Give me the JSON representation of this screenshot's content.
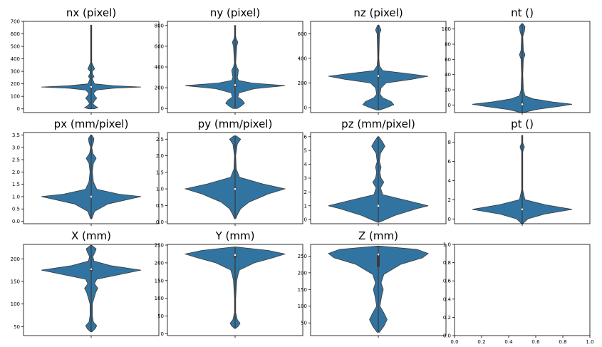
{
  "chart_data": [
    {
      "type": "violin",
      "title": "nx (pixel)",
      "ylim": [
        -30,
        700
      ],
      "yticks": [
        0,
        100,
        200,
        300,
        400,
        500,
        600,
        700
      ],
      "min": 0,
      "max": 670,
      "q1": 165,
      "median": 176,
      "q3": 182,
      "density": [
        [
          0,
          0.05
        ],
        [
          10,
          0.12
        ],
        [
          20,
          0.08
        ],
        [
          40,
          0.03
        ],
        [
          65,
          0.06
        ],
        [
          85,
          0.1
        ],
        [
          100,
          0.07
        ],
        [
          125,
          0.04
        ],
        [
          150,
          0.1
        ],
        [
          165,
          0.4
        ],
        [
          175,
          0.9
        ],
        [
          185,
          0.4
        ],
        [
          200,
          0.06
        ],
        [
          240,
          0.02
        ],
        [
          260,
          0.05
        ],
        [
          280,
          0.02
        ],
        [
          300,
          0.02
        ],
        [
          320,
          0.06
        ],
        [
          340,
          0.04
        ],
        [
          370,
          0.01
        ],
        [
          420,
          0.01
        ],
        [
          670,
          0.01
        ]
      ],
      "color": "#3274a1"
    },
    {
      "type": "violin",
      "title": "ny (pixel)",
      "ylim": [
        -40,
        840
      ],
      "yticks": [
        0,
        200,
        400,
        600,
        800
      ],
      "min": 0,
      "max": 800,
      "q1": 208,
      "median": 225,
      "q3": 232,
      "density": [
        [
          0,
          0.04
        ],
        [
          20,
          0.1
        ],
        [
          50,
          0.17
        ],
        [
          80,
          0.13
        ],
        [
          110,
          0.05
        ],
        [
          150,
          0.07
        ],
        [
          190,
          0.35
        ],
        [
          220,
          0.9
        ],
        [
          245,
          0.3
        ],
        [
          270,
          0.06
        ],
        [
          300,
          0.04
        ],
        [
          330,
          0.05
        ],
        [
          370,
          0.06
        ],
        [
          400,
          0.03
        ],
        [
          440,
          0.01
        ],
        [
          600,
          0.03
        ],
        [
          640,
          0.05
        ],
        [
          670,
          0.02
        ],
        [
          700,
          0.01
        ],
        [
          800,
          0.01
        ]
      ],
      "color": "#3274a1"
    },
    {
      "type": "violin",
      "title": "nz (pixel)",
      "ylim": [
        -40,
        700
      ],
      "yticks": [
        0,
        200,
        400,
        600
      ],
      "min": -20,
      "max": 670,
      "q1": 245,
      "median": 256,
      "q3": 262,
      "density": [
        [
          -20,
          0.02
        ],
        [
          0,
          0.15
        ],
        [
          25,
          0.28
        ],
        [
          50,
          0.23
        ],
        [
          80,
          0.08
        ],
        [
          110,
          0.03
        ],
        [
          160,
          0.05
        ],
        [
          200,
          0.14
        ],
        [
          230,
          0.6
        ],
        [
          255,
          0.9
        ],
        [
          275,
          0.55
        ],
        [
          300,
          0.08
        ],
        [
          340,
          0.02
        ],
        [
          400,
          0.01
        ],
        [
          600,
          0.02
        ],
        [
          630,
          0.05
        ],
        [
          660,
          0.02
        ],
        [
          670,
          0.01
        ]
      ],
      "color": "#3274a1"
    },
    {
      "type": "violin",
      "title": "nt ()",
      "ylim": [
        -10,
        110
      ],
      "yticks": [
        0,
        20,
        40,
        60,
        80,
        100
      ],
      "min": -10,
      "max": 107,
      "q1": 0,
      "median": 1,
      "q3": 3,
      "density": [
        [
          -10,
          0.02
        ],
        [
          -6,
          0.25
        ],
        [
          -2,
          0.65
        ],
        [
          1,
          0.9
        ],
        [
          4,
          0.55
        ],
        [
          8,
          0.2
        ],
        [
          12,
          0.05
        ],
        [
          20,
          0.02
        ],
        [
          40,
          0.01
        ],
        [
          60,
          0.02
        ],
        [
          66,
          0.05
        ],
        [
          72,
          0.02
        ],
        [
          90,
          0.01
        ],
        [
          97,
          0.04
        ],
        [
          103,
          0.05
        ],
        [
          107,
          0.01
        ]
      ],
      "color": "#3274a1"
    },
    {
      "type": "violin",
      "title": "px (mm/pixel)",
      "ylim": [
        -0.1,
        3.6
      ],
      "yticks": [
        0.0,
        0.5,
        1.0,
        1.5,
        2.0,
        2.5,
        3.0,
        3.5
      ],
      "min": 0.1,
      "max": 3.5,
      "q1": 0.98,
      "median": 1.0,
      "q3": 1.03,
      "density": [
        [
          0.1,
          0.01
        ],
        [
          0.4,
          0.06
        ],
        [
          0.7,
          0.3
        ],
        [
          0.9,
          0.7
        ],
        [
          1.0,
          0.9
        ],
        [
          1.1,
          0.5
        ],
        [
          1.3,
          0.1
        ],
        [
          1.6,
          0.04
        ],
        [
          2.0,
          0.02
        ],
        [
          2.35,
          0.04
        ],
        [
          2.55,
          0.09
        ],
        [
          2.75,
          0.03
        ],
        [
          3.0,
          0.01
        ],
        [
          3.2,
          0.04
        ],
        [
          3.35,
          0.05
        ],
        [
          3.5,
          0.01
        ]
      ],
      "color": "#3274a1"
    },
    {
      "type": "violin",
      "title": "py (mm/pixel)",
      "ylim": [
        -0.05,
        2.7
      ],
      "yticks": [
        0.0,
        0.5,
        1.0,
        1.5,
        2.0,
        2.5
      ],
      "min": 0.1,
      "max": 2.6,
      "q1": 0.97,
      "median": 1.0,
      "q3": 1.03,
      "density": [
        [
          0.1,
          0.01
        ],
        [
          0.25,
          0.05
        ],
        [
          0.4,
          0.1
        ],
        [
          0.6,
          0.25
        ],
        [
          0.85,
          0.6
        ],
        [
          1.0,
          0.9
        ],
        [
          1.15,
          0.5
        ],
        [
          1.35,
          0.08
        ],
        [
          1.6,
          0.02
        ],
        [
          2.0,
          0.01
        ],
        [
          2.35,
          0.04
        ],
        [
          2.5,
          0.1
        ],
        [
          2.6,
          0.02
        ]
      ],
      "color": "#3274a1"
    },
    {
      "type": "violin",
      "title": "pz (mm/pixel)",
      "ylim": [
        -0.3,
        6.3
      ],
      "yticks": [
        0,
        1,
        2,
        3,
        4,
        5,
        6
      ],
      "min": -0.2,
      "max": 6.0,
      "q1": 0.98,
      "median": 1.0,
      "q3": 1.02,
      "density": [
        [
          -0.2,
          0.01
        ],
        [
          0.3,
          0.3
        ],
        [
          0.8,
          0.7
        ],
        [
          1.0,
          0.9
        ],
        [
          1.3,
          0.6
        ],
        [
          1.8,
          0.08
        ],
        [
          2.3,
          0.04
        ],
        [
          2.7,
          0.1
        ],
        [
          3.0,
          0.05
        ],
        [
          3.4,
          0.03
        ],
        [
          3.8,
          0.05
        ],
        [
          4.2,
          0.02
        ],
        [
          4.8,
          0.04
        ],
        [
          5.3,
          0.12
        ],
        [
          5.6,
          0.08
        ],
        [
          6.0,
          0.01
        ]
      ],
      "color": "#3274a1"
    },
    {
      "type": "violin",
      "title": "pt ()",
      "ylim": [
        -0.5,
        9
      ],
      "yticks": [
        0,
        2,
        4,
        6,
        8
      ],
      "min": -0.5,
      "max": 8.7,
      "q1": 0.95,
      "median": 1.0,
      "q3": 1.05,
      "density": [
        [
          -0.5,
          0.01
        ],
        [
          0,
          0.1
        ],
        [
          0.5,
          0.4
        ],
        [
          1.0,
          0.9
        ],
        [
          1.5,
          0.4
        ],
        [
          2.0,
          0.05
        ],
        [
          3.0,
          0.01
        ],
        [
          7.0,
          0.01
        ],
        [
          7.5,
          0.04
        ],
        [
          7.9,
          0.01
        ],
        [
          8.7,
          0.01
        ]
      ],
      "color": "#3274a1"
    },
    {
      "type": "violin",
      "title": "X (mm)",
      "ylim": [
        30,
        232
      ],
      "yticks": [
        50,
        100,
        150,
        200
      ],
      "min": 38,
      "max": 230,
      "q1": 173,
      "median": 177,
      "q3": 180,
      "density": [
        [
          38,
          0.01
        ],
        [
          45,
          0.07
        ],
        [
          52,
          0.1
        ],
        [
          60,
          0.04
        ],
        [
          75,
          0.02
        ],
        [
          100,
          0.02
        ],
        [
          125,
          0.08
        ],
        [
          135,
          0.12
        ],
        [
          145,
          0.06
        ],
        [
          155,
          0.1
        ],
        [
          165,
          0.5
        ],
        [
          175,
          0.9
        ],
        [
          185,
          0.35
        ],
        [
          195,
          0.05
        ],
        [
          205,
          0.03
        ],
        [
          215,
          0.07
        ],
        [
          222,
          0.09
        ],
        [
          230,
          0.01
        ]
      ],
      "color": "#3274a1"
    },
    {
      "type": "violin",
      "title": "Y (mm)",
      "ylim": [
        -5,
        252
      ],
      "yticks": [
        0,
        50,
        100,
        150,
        200,
        250
      ],
      "min": 15,
      "max": 245,
      "q1": 215,
      "median": 222,
      "q3": 225,
      "density": [
        [
          15,
          0.01
        ],
        [
          22,
          0.06
        ],
        [
          30,
          0.09
        ],
        [
          40,
          0.04
        ],
        [
          60,
          0.01
        ],
        [
          100,
          0.01
        ],
        [
          150,
          0.03
        ],
        [
          165,
          0.05
        ],
        [
          180,
          0.08
        ],
        [
          200,
          0.35
        ],
        [
          215,
          0.7
        ],
        [
          225,
          0.9
        ],
        [
          235,
          0.6
        ],
        [
          245,
          0.01
        ]
      ],
      "color": "#3274a1"
    },
    {
      "type": "violin",
      "title": "Z (mm)",
      "ylim": [
        12,
        285
      ],
      "yticks": [
        50,
        100,
        150,
        200,
        250
      ],
      "min": 22,
      "max": 280,
      "q1": 218,
      "median": 255,
      "q3": 258,
      "density": [
        [
          22,
          0.02
        ],
        [
          40,
          0.1
        ],
        [
          60,
          0.16
        ],
        [
          80,
          0.1
        ],
        [
          100,
          0.03
        ],
        [
          130,
          0.06
        ],
        [
          150,
          0.09
        ],
        [
          170,
          0.05
        ],
        [
          195,
          0.1
        ],
        [
          225,
          0.4
        ],
        [
          245,
          0.8
        ],
        [
          258,
          0.9
        ],
        [
          270,
          0.7
        ],
        [
          280,
          0.01
        ]
      ],
      "color": "#3274a1"
    },
    {
      "type": "empty",
      "title": "",
      "xlim": [
        0,
        1
      ],
      "ylim": [
        0,
        1
      ],
      "xticks": [
        "0.0",
        "0.2",
        "0.4",
        "0.6",
        "0.8",
        "1.0"
      ],
      "yticks": [
        "0.0",
        "0.2",
        "0.4",
        "0.6",
        "0.8",
        "1.0"
      ]
    }
  ]
}
